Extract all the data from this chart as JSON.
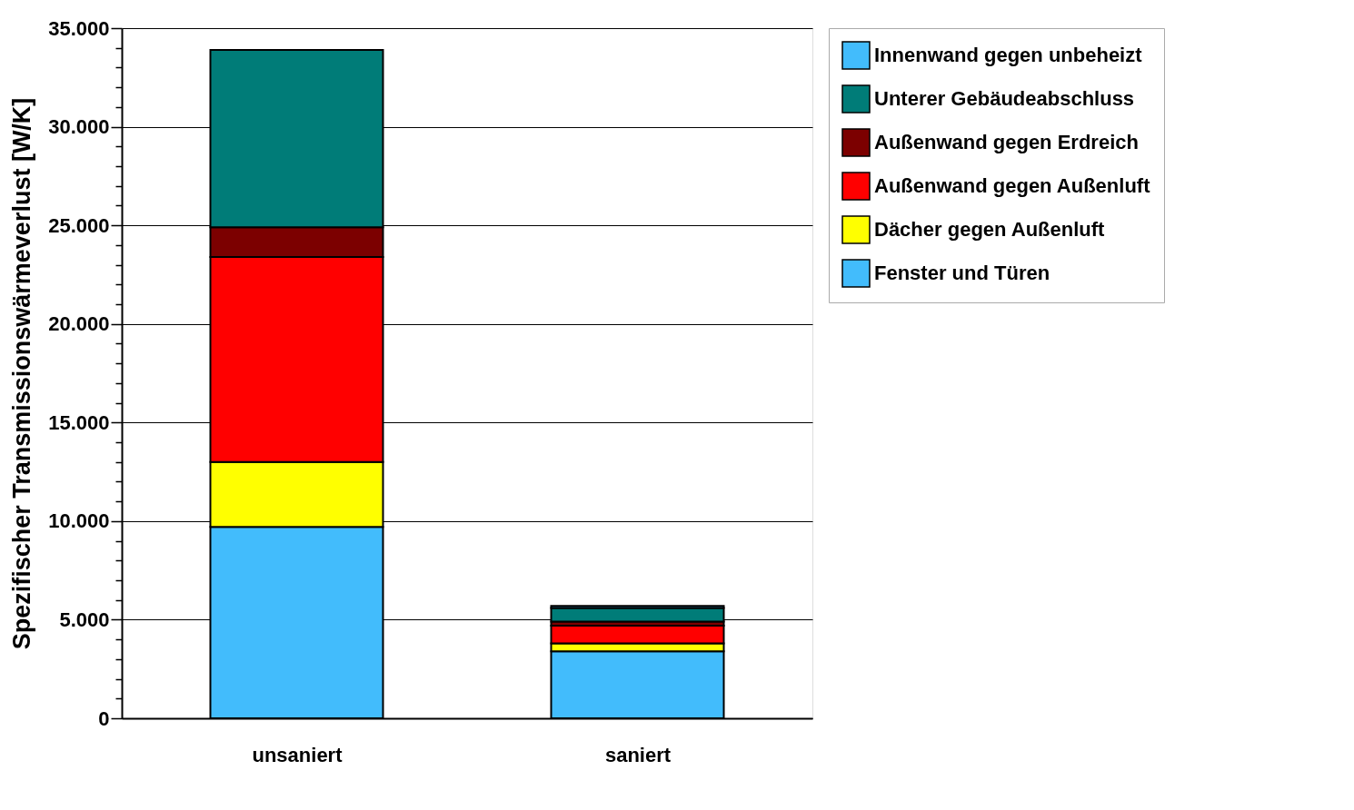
{
  "chart_data": {
    "type": "bar",
    "stacked": true,
    "ylabel": "Spezifischer Transmissionswärmeverlust [W/K]",
    "categories": [
      "unsaniert",
      "saniert"
    ],
    "series": [
      {
        "name": "Fenster und Türen",
        "color": "#42bcfc",
        "values": [
          9700,
          3400
        ]
      },
      {
        "name": "Dächer gegen Außenluft",
        "color": "#ffff00",
        "values": [
          3300,
          400
        ]
      },
      {
        "name": "Außenwand gegen Außenluft",
        "color": "#ff0000",
        "values": [
          10400,
          900
        ]
      },
      {
        "name": "Außenwand gegen Erdreich",
        "color": "#7c0000",
        "values": [
          1500,
          200
        ]
      },
      {
        "name": "Unterer Gebäudeabschluss",
        "color": "#007c78",
        "values": [
          9000,
          700
        ]
      },
      {
        "name": "Innenwand gegen unbeheizt",
        "color": "#42bcfc",
        "values": [
          null,
          100
        ]
      }
    ],
    "ylim": [
      0,
      35000
    ],
    "yticks": [
      {
        "value": 0,
        "label": "0"
      },
      {
        "value": 1000,
        "label": null
      },
      {
        "value": 2000,
        "label": null
      },
      {
        "value": 3000,
        "label": null
      },
      {
        "value": 4000,
        "label": null
      },
      {
        "value": 5000,
        "label": "5.000"
      },
      {
        "value": 6000,
        "label": null
      },
      {
        "value": 7000,
        "label": null
      },
      {
        "value": 8000,
        "label": null
      },
      {
        "value": 9000,
        "label": null
      },
      {
        "value": 10000,
        "label": "10.000"
      },
      {
        "value": 11000,
        "label": null
      },
      {
        "value": 12000,
        "label": null
      },
      {
        "value": 13000,
        "label": null
      },
      {
        "value": 14000,
        "label": null
      },
      {
        "value": 15000,
        "label": "15.000"
      },
      {
        "value": 16000,
        "label": null
      },
      {
        "value": 17000,
        "label": null
      },
      {
        "value": 18000,
        "label": null
      },
      {
        "value": 19000,
        "label": null
      },
      {
        "value": 20000,
        "label": "20.000"
      },
      {
        "value": 21000,
        "label": null
      },
      {
        "value": 22000,
        "label": null
      },
      {
        "value": 23000,
        "label": null
      },
      {
        "value": 24000,
        "label": null
      },
      {
        "value": 25000,
        "label": "25.000"
      },
      {
        "value": 26000,
        "label": null
      },
      {
        "value": 27000,
        "label": null
      },
      {
        "value": 28000,
        "label": null
      },
      {
        "value": 29000,
        "label": null
      },
      {
        "value": 30000,
        "label": "30.000"
      },
      {
        "value": 31000,
        "label": null
      },
      {
        "value": 32000,
        "label": null
      },
      {
        "value": 33000,
        "label": null
      },
      {
        "value": 34000,
        "label": null
      },
      {
        "value": 35000,
        "label": "35.000"
      }
    ],
    "grid": "y",
    "legend": "top right"
  }
}
